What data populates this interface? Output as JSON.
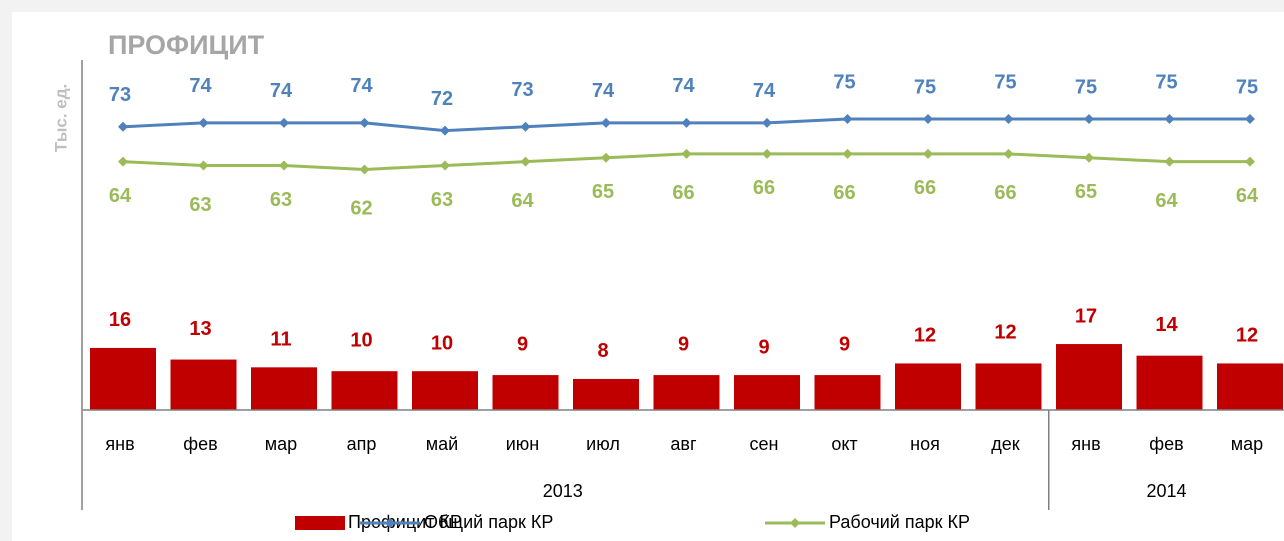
{
  "chart_data": {
    "type": "combo",
    "title": "ПРОФИЦИТ",
    "y_label": "Тыс. ед.",
    "categories": [
      "янв",
      "фев",
      "мар",
      "апр",
      "май",
      "июн",
      "июл",
      "авг",
      "сен",
      "окт",
      "ноя",
      "дек",
      "янв",
      "фев",
      "мар"
    ],
    "groups": [
      {
        "label": "2013",
        "size": 12
      },
      {
        "label": "2014",
        "size": 3
      }
    ],
    "ylim": [
      0,
      100
    ],
    "series": [
      {
        "name": "Профицит КР",
        "type": "bar",
        "color": "#c00000",
        "values": [
          16,
          13,
          11,
          10,
          10,
          9,
          8,
          9,
          9,
          9,
          12,
          12,
          17,
          14,
          12
        ]
      },
      {
        "name": "Общий парк КР",
        "type": "line",
        "color": "#4f81bd",
        "values": [
          73,
          74,
          74,
          74,
          72,
          73,
          74,
          74,
          74,
          75,
          75,
          75,
          75,
          75,
          75
        ]
      },
      {
        "name": "Рабочий парк КР",
        "type": "line",
        "color": "#9bbb59",
        "values": [
          64,
          63,
          63,
          62,
          63,
          64,
          65,
          66,
          66,
          66,
          66,
          66,
          65,
          64,
          64
        ]
      }
    ]
  }
}
